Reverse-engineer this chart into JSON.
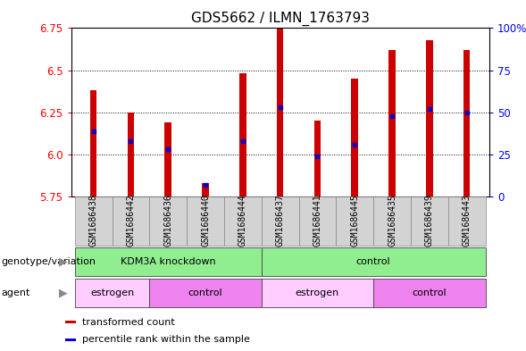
{
  "title": "GDS5662 / ILMN_1763793",
  "samples": [
    "GSM1686438",
    "GSM1686442",
    "GSM1686436",
    "GSM1686440",
    "GSM1686444",
    "GSM1686437",
    "GSM1686441",
    "GSM1686445",
    "GSM1686435",
    "GSM1686439",
    "GSM1686443"
  ],
  "transformed_count": [
    6.38,
    6.25,
    6.19,
    5.83,
    6.48,
    6.75,
    6.2,
    6.45,
    6.62,
    6.68,
    6.62
  ],
  "percentile_rank": [
    6.14,
    6.08,
    6.03,
    5.82,
    6.08,
    6.28,
    5.99,
    6.06,
    6.23,
    6.27,
    6.25
  ],
  "y_min": 5.75,
  "y_max": 6.75,
  "y_ticks": [
    5.75,
    6.0,
    6.25,
    6.5,
    6.75
  ],
  "y_right_ticks": [
    0,
    25,
    50,
    75,
    100
  ],
  "bar_color": "#cc0000",
  "dot_color": "#0000cc",
  "bar_width": 0.18,
  "bg_color": "#ffffff",
  "plot_bg_color": "#ffffff",
  "genotype_groups": [
    {
      "label": "KDM3A knockdown",
      "start": 0,
      "end": 5,
      "color": "#90ee90"
    },
    {
      "label": "control",
      "start": 5,
      "end": 11,
      "color": "#90ee90"
    }
  ],
  "agent_groups": [
    {
      "label": "estrogen",
      "start": 0,
      "end": 2,
      "color": "#ffccff"
    },
    {
      "label": "control",
      "start": 2,
      "end": 5,
      "color": "#ee82ee"
    },
    {
      "label": "estrogen",
      "start": 5,
      "end": 8,
      "color": "#ffccff"
    },
    {
      "label": "control",
      "start": 8,
      "end": 11,
      "color": "#ee82ee"
    }
  ],
  "legend_items": [
    {
      "label": "transformed count",
      "color": "#cc0000"
    },
    {
      "label": "percentile rank within the sample",
      "color": "#0000cc"
    }
  ],
  "label_fontsize": 8,
  "tick_fontsize": 8.5,
  "title_fontsize": 11,
  "sample_fontsize": 7
}
